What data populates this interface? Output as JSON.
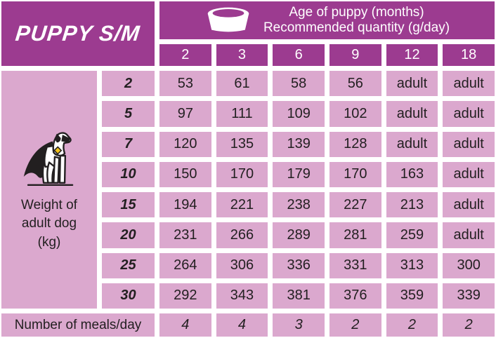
{
  "title": "PUPPY S/M",
  "header": {
    "line1": "Age of puppy (months)",
    "line2": "Recommended quantity (g/day)",
    "bowl_icon": "dog-bowl-icon"
  },
  "row_axis": {
    "icon": "superhero-dog-icon",
    "label_lines": {
      "0": "Weight of",
      "1": "adult dog",
      "2": "(kg)"
    }
  },
  "meals_label": "Number of meals/day",
  "colors": {
    "purple": "#9C3B90",
    "pink": "#DBA8CE",
    "text_dark": "#221F20",
    "white": "#FFFFFF",
    "badge_yellow": "#F2C21A"
  },
  "chart_data": {
    "type": "table",
    "title": "PUPPY S/M",
    "columns_label": "Age of puppy (months)",
    "values_label": "Recommended quantity (g/day)",
    "rows_label": "Weight of adult dog (kg)",
    "age_months": [
      "2",
      "3",
      "6",
      "9",
      "12",
      "18"
    ],
    "weights_kg": [
      "2",
      "5",
      "7",
      "10",
      "15",
      "20",
      "25",
      "30"
    ],
    "quantities": [
      [
        "53",
        "61",
        "58",
        "56",
        "adult",
        "adult"
      ],
      [
        "97",
        "111",
        "109",
        "102",
        "adult",
        "adult"
      ],
      [
        "120",
        "135",
        "139",
        "128",
        "adult",
        "adult"
      ],
      [
        "150",
        "170",
        "179",
        "170",
        "163",
        "adult"
      ],
      [
        "194",
        "221",
        "238",
        "227",
        "213",
        "adult"
      ],
      [
        "231",
        "266",
        "289",
        "281",
        "259",
        "adult"
      ],
      [
        "264",
        "306",
        "336",
        "331",
        "313",
        "300"
      ],
      [
        "292",
        "343",
        "381",
        "376",
        "359",
        "339"
      ]
    ],
    "meals_row_label": "Number of meals/day",
    "meals_per_day": [
      "4",
      "4",
      "3",
      "2",
      "2",
      "2"
    ]
  }
}
